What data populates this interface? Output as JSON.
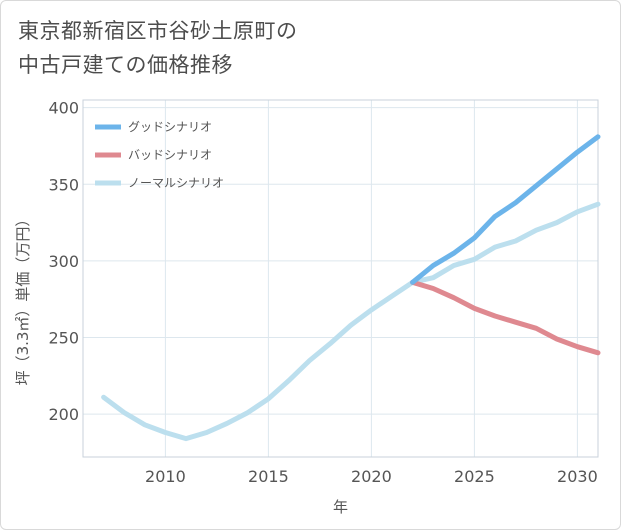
{
  "title_lines": [
    "東京都新宿区市谷砂土原町の",
    "中古戸建ての価格推移"
  ],
  "chart_data": {
    "type": "line",
    "xlabel": "年",
    "ylabel": "坪（3.3㎡）単価（万円）",
    "xlim": [
      2006,
      2031
    ],
    "ylim": [
      172,
      405
    ],
    "xticks": [
      2010,
      2015,
      2020,
      2025,
      2030
    ],
    "yticks": [
      200,
      250,
      300,
      350,
      400
    ],
    "grid": true,
    "legend_position": "top-left",
    "series": [
      {
        "name": "グッドシナリオ",
        "color": "#6cb4ea",
        "x": [
          2022,
          2023,
          2024,
          2025,
          2026,
          2027,
          2028,
          2029,
          2030,
          2031
        ],
        "values": [
          286,
          297,
          305,
          315,
          329,
          338,
          349,
          360,
          371,
          381
        ]
      },
      {
        "name": "バッドシナリオ",
        "color": "#df8990",
        "x": [
          2022,
          2023,
          2024,
          2025,
          2026,
          2027,
          2028,
          2029,
          2030,
          2031
        ],
        "values": [
          286,
          282,
          276,
          269,
          264,
          260,
          256,
          249,
          244,
          240
        ]
      },
      {
        "name": "ノーマルシナリオ",
        "color": "#bcdfee",
        "x": [
          2007,
          2008,
          2009,
          2010,
          2011,
          2012,
          2013,
          2014,
          2015,
          2016,
          2017,
          2018,
          2019,
          2020,
          2021,
          2022,
          2023,
          2024,
          2025,
          2026,
          2027,
          2028,
          2029,
          2030,
          2031
        ],
        "values": [
          211,
          201,
          193,
          188,
          184,
          188,
          194,
          201,
          210,
          222,
          235,
          246,
          258,
          268,
          277,
          286,
          289,
          297,
          301,
          309,
          313,
          320,
          325,
          332,
          337
        ]
      }
    ]
  }
}
